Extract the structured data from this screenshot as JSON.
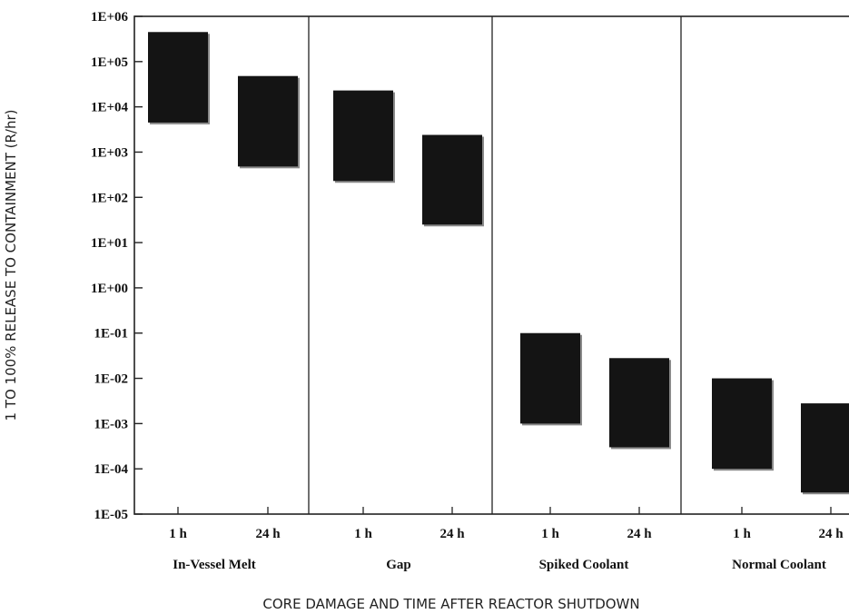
{
  "chart_data": {
    "type": "bar",
    "subtype": "floating-range",
    "xlabel": "CORE DAMAGE AND TIME AFTER REACTOR SHUTDOWN",
    "ylabel": "1 TO 100% RELEASE TO CONTAINMENT (R/hr)",
    "yscale": "log",
    "ylim": [
      1e-05,
      1000000.0
    ],
    "yticks": [
      "1E-05",
      "1E-04",
      "1E-03",
      "1E-02",
      "1E-01",
      "1E+00",
      "1E+01",
      "1E+02",
      "1E+03",
      "1E+04",
      "1E+05",
      "1E+06"
    ],
    "grid": false,
    "groups": [
      {
        "name": "In-Vessel Melt",
        "categories": [
          {
            "label": "1 h",
            "low": 4500,
            "high": 450000
          },
          {
            "label": "24 h",
            "low": 480,
            "high": 48000
          }
        ]
      },
      {
        "name": "Gap",
        "categories": [
          {
            "label": "1 h",
            "low": 230,
            "high": 23000
          },
          {
            "label": "24 h",
            "low": 25,
            "high": 2400
          }
        ]
      },
      {
        "name": "Spiked Coolant",
        "categories": [
          {
            "label": "1 h",
            "low": 0.001,
            "high": 0.1
          },
          {
            "label": "24 h",
            "low": 0.0003,
            "high": 0.028
          }
        ]
      },
      {
        "name": "Normal Coolant",
        "categories": [
          {
            "label": "1 h",
            "low": 0.0001,
            "high": 0.01
          },
          {
            "label": "24 h",
            "low": 3e-05,
            "high": 0.0028
          }
        ]
      }
    ],
    "colors": {
      "bar": "#141414",
      "bar_edge": "#8a8a8a",
      "axis": "#222222"
    }
  }
}
